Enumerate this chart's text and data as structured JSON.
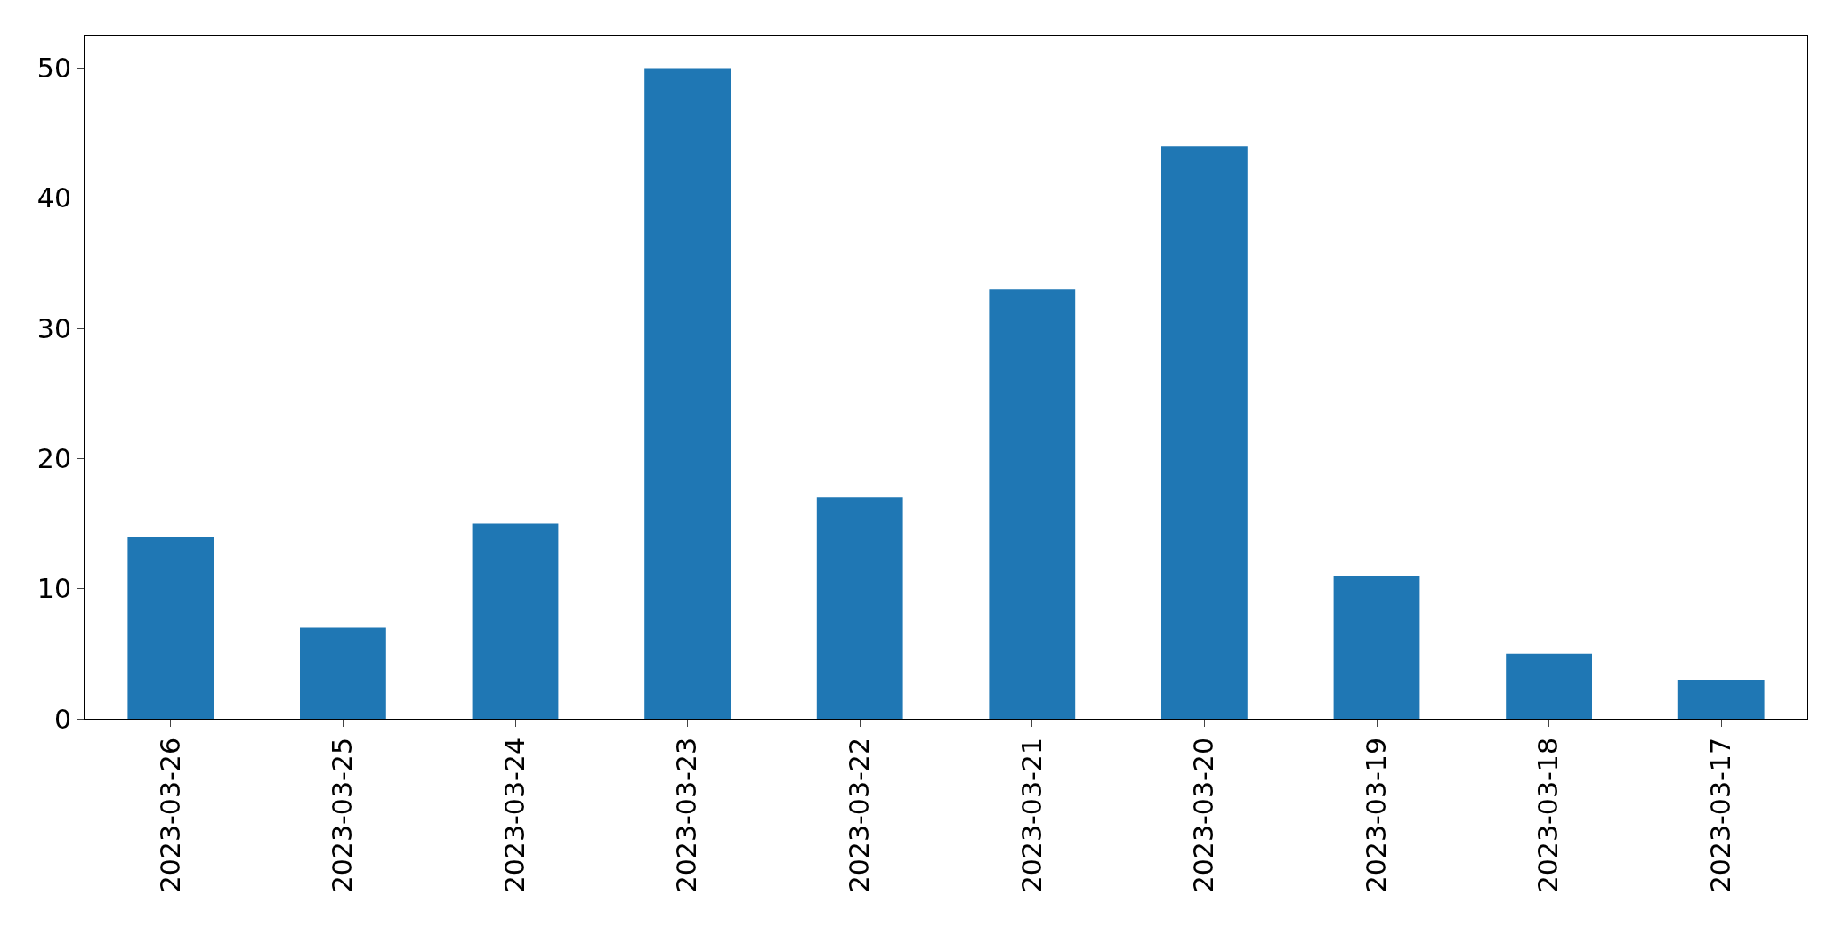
{
  "chart_data": {
    "type": "bar",
    "categories": [
      "2023-03-26",
      "2023-03-25",
      "2023-03-24",
      "2023-03-23",
      "2023-03-22",
      "2023-03-21",
      "2023-03-20",
      "2023-03-19",
      "2023-03-18",
      "2023-03-17"
    ],
    "values": [
      14,
      7,
      15,
      50,
      17,
      33,
      44,
      11,
      5,
      3
    ],
    "color": "#1f77b4",
    "ylim": [
      0,
      52.5
    ],
    "yticks": [
      0,
      10,
      20,
      30,
      40,
      50
    ]
  }
}
